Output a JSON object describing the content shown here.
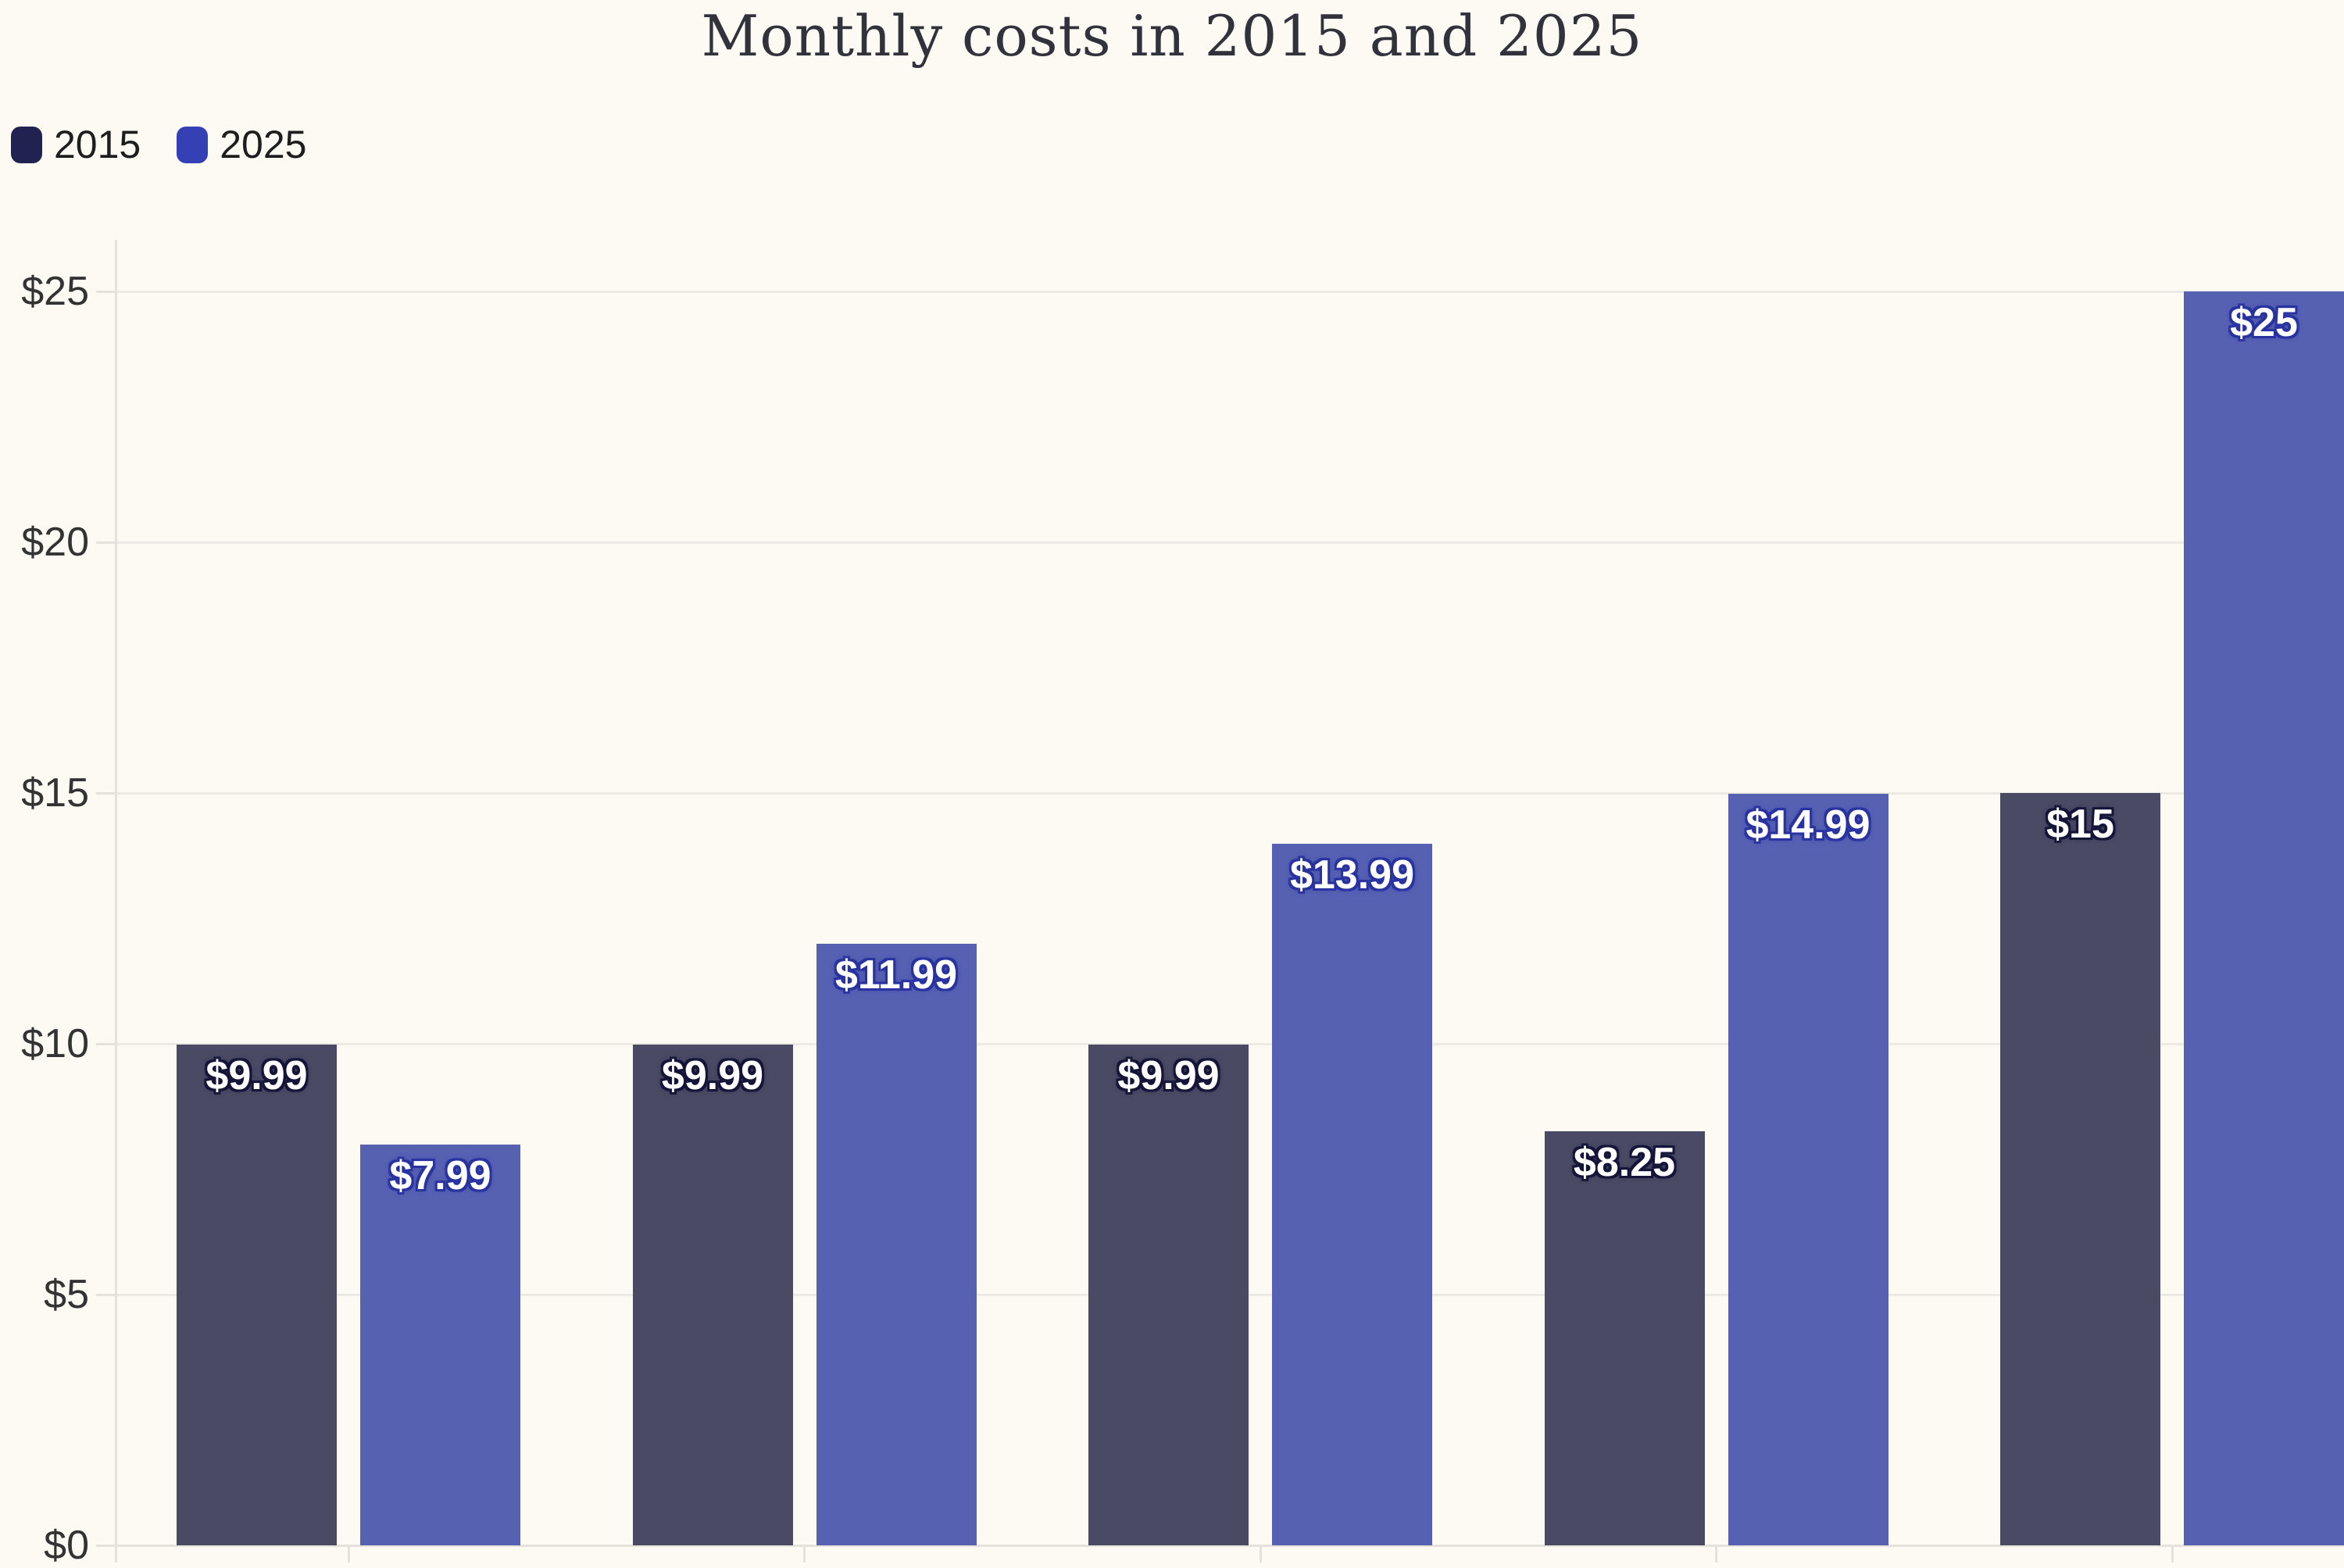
{
  "title": "Monthly costs in 2015 and 2025",
  "colors": {
    "background": "#FCFAF2",
    "gridline": "#ECEAE5",
    "axis": "#E4E2DB",
    "title_text": "#32323C",
    "tick_label_text": "#333333",
    "legend_text": "#1E1E1E"
  },
  "legend": {
    "position": "top-left",
    "items": [
      {
        "label": "2015",
        "swatch_color": "#222250"
      },
      {
        "label": "2025",
        "swatch_color": "#3540B5"
      }
    ]
  },
  "y_axis": {
    "tick_values": [
      0,
      5,
      10,
      15,
      20,
      25
    ],
    "tick_labels": [
      "$0",
      "$5",
      "$10",
      "$15",
      "$20",
      "$25"
    ]
  },
  "chart_data": {
    "type": "bar",
    "title": "Monthly costs in 2015 and 2025",
    "categories": [
      "",
      "",
      "",
      "",
      ""
    ],
    "series": [
      {
        "name": "2015",
        "bar_color": "#4A4A65",
        "legend_color": "#222250",
        "label_outline_color": "#16163A",
        "values": [
          9.99,
          9.99,
          9.99,
          8.25,
          15
        ],
        "value_labels": [
          "$9.99",
          "$9.99",
          "$9.99",
          "$8.25",
          "$15"
        ]
      },
      {
        "name": "2025",
        "bar_color": "#5661B2",
        "legend_color": "#3540B5",
        "label_outline_color": "#2A34A0",
        "values": [
          7.99,
          11.99,
          13.99,
          14.99,
          25
        ],
        "value_labels": [
          "$7.99",
          "$11.99",
          "$13.99",
          "$14.99",
          "$25"
        ]
      }
    ],
    "xlabel": "",
    "ylabel": "",
    "ylim": [
      0,
      25
    ],
    "grid": true,
    "legend_position": "top-left"
  }
}
